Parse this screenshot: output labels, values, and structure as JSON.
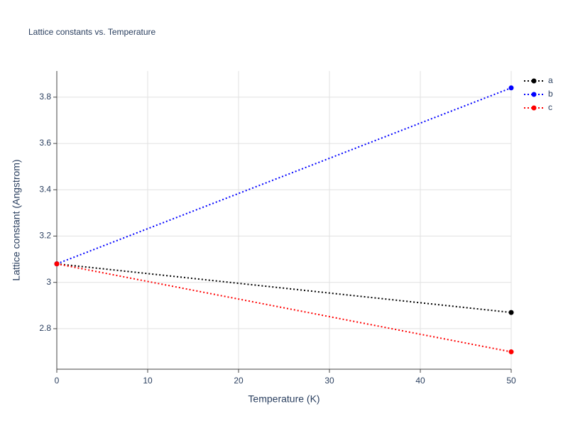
{
  "chart_data": {
    "type": "line",
    "title": "Lattice constants vs. Temperature",
    "x_label": "Temperature (K)",
    "y_label": "Lattice constant (Angstrom)",
    "x": [
      0,
      50
    ],
    "series": [
      {
        "name": "a",
        "color": "#000000",
        "values": [
          3.08,
          2.87
        ]
      },
      {
        "name": "b",
        "color": "#0000ff",
        "values": [
          3.08,
          3.84
        ]
      },
      {
        "name": "c",
        "color": "#ff0000",
        "values": [
          3.08,
          2.7
        ]
      }
    ],
    "xlim": [
      0,
      50
    ],
    "xticks": [
      0,
      10,
      20,
      30,
      40,
      50
    ],
    "ylim": [
      2.625,
      3.913
    ],
    "yticks": [
      2.8,
      3,
      3.2,
      3.4,
      3.6,
      3.8
    ],
    "grid": true,
    "legend": "right"
  }
}
